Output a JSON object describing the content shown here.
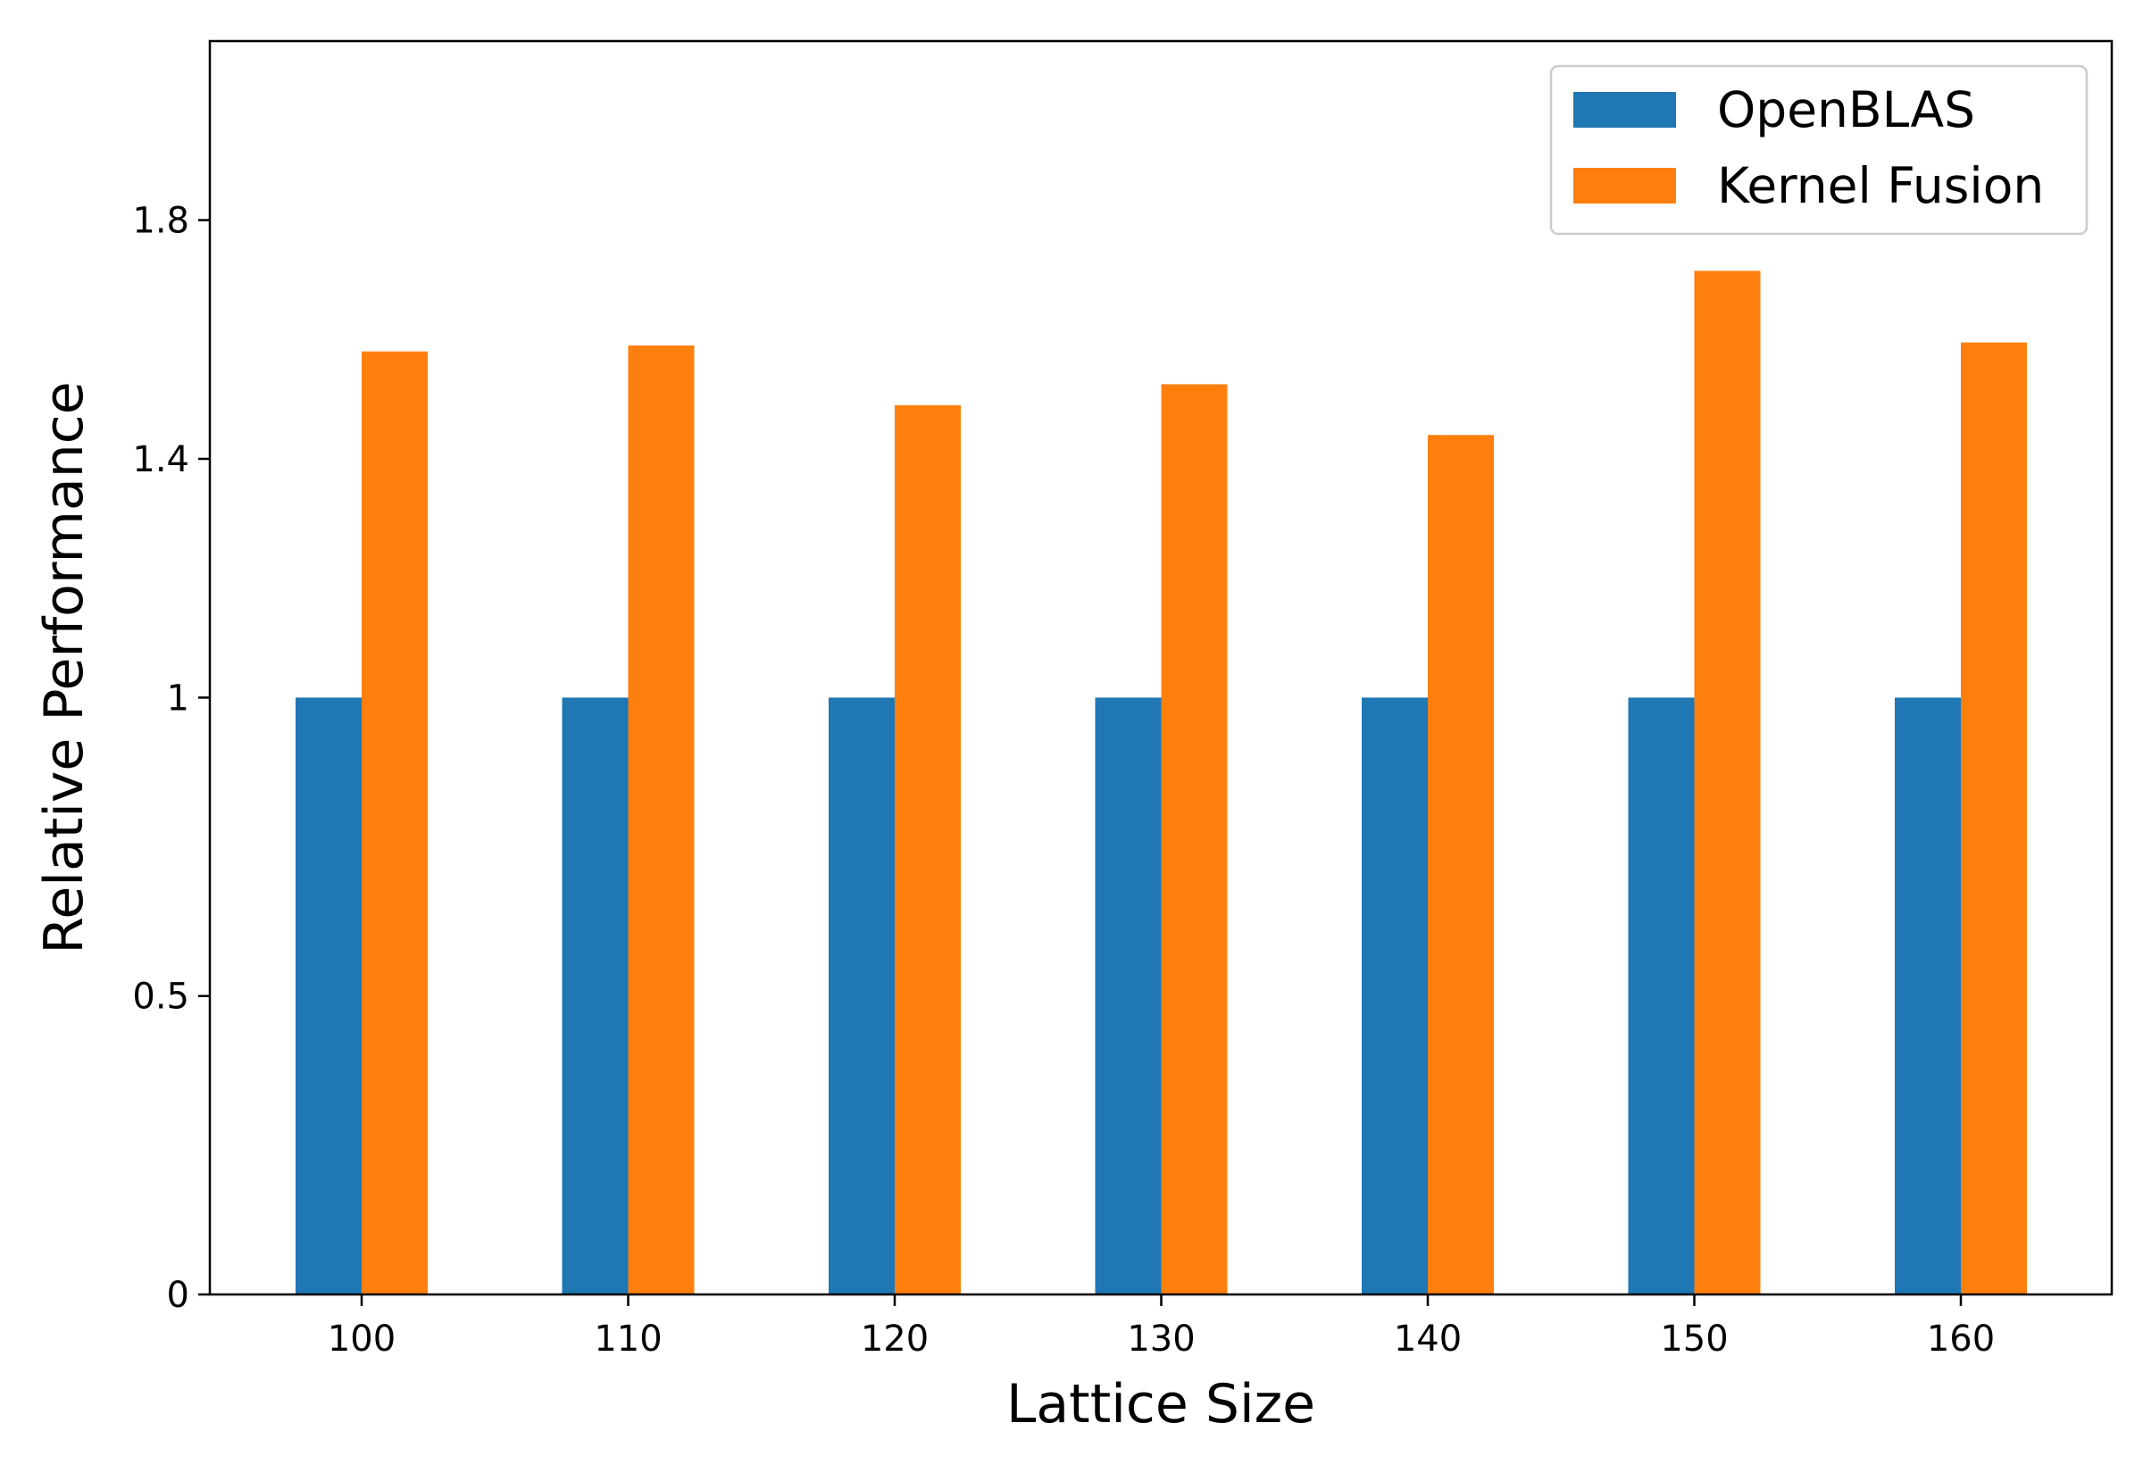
{
  "chart_data": {
    "type": "bar",
    "title": "",
    "xlabel": "Lattice Size",
    "ylabel": "Relative Performance",
    "categories": [
      "100",
      "110",
      "120",
      "130",
      "140",
      "150",
      "160"
    ],
    "series": [
      {
        "name": "OpenBLAS",
        "color": "#1f77b4",
        "values": [
          1,
          1,
          1,
          1,
          1,
          1,
          1
        ]
      },
      {
        "name": "Kernel Fusion",
        "color": "#ff7f0e",
        "values": [
          1.58,
          1.59,
          1.49,
          1.525,
          1.44,
          1.715,
          1.595
        ]
      }
    ],
    "ylim": [
      0,
      2.1
    ],
    "yticks": [
      {
        "value": 0,
        "label": "0"
      },
      {
        "value": 0.5,
        "label": "0.5"
      },
      {
        "value": 1,
        "label": "1"
      },
      {
        "value": 1.4,
        "label": "1.4"
      },
      {
        "value": 1.8,
        "label": "1.8"
      }
    ],
    "grid": false,
    "legend": "top-right"
  }
}
